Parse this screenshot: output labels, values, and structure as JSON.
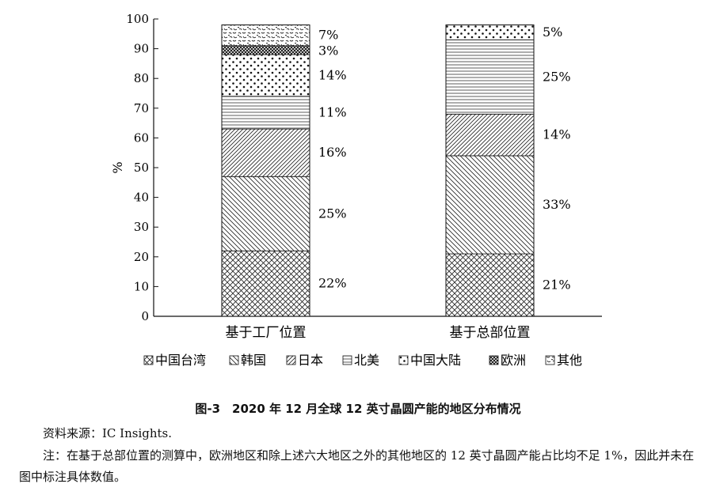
{
  "chart_data": {
    "type": "bar",
    "stacked": true,
    "ylabel": "%",
    "ylim": [
      0,
      100
    ],
    "yticks": [
      "0",
      "10",
      "20",
      "30",
      "40",
      "50",
      "60",
      "70",
      "80",
      "90",
      "100"
    ],
    "categories": [
      "基于工厂位置",
      "基于总部位置"
    ],
    "series": [
      {
        "name": "中国台湾",
        "pattern": "crosshatch",
        "values": [
          22,
          21
        ],
        "labels": [
          "22%",
          "21%"
        ]
      },
      {
        "name": "韩国",
        "pattern": "backslash",
        "values": [
          25,
          33
        ],
        "labels": [
          "25%",
          "33%"
        ]
      },
      {
        "name": "日本",
        "pattern": "slash",
        "values": [
          16,
          14
        ],
        "labels": [
          "16%",
          "14%"
        ]
      },
      {
        "name": "北美",
        "pattern": "horizontal",
        "values": [
          11,
          25
        ],
        "labels": [
          "11%",
          "25%"
        ]
      },
      {
        "name": "中国大陆",
        "pattern": "dots",
        "values": [
          14,
          5
        ],
        "labels": [
          "14%",
          "5%"
        ]
      },
      {
        "name": "欧洲",
        "pattern": "dense-grid",
        "values": [
          3,
          0
        ],
        "labels": [
          "3%",
          ""
        ]
      },
      {
        "name": "其他",
        "pattern": "speckle",
        "values": [
          7,
          0
        ],
        "labels": [
          "7%",
          ""
        ]
      }
    ],
    "legend_position": "bottom"
  },
  "caption": "图-3　2020 年 12 月全球 12 英寸晶圆产能的地区分布情况",
  "source": "资料来源：IC Insights.",
  "note": "注：在基于总部位置的测算中，欧洲地区和除上述六大地区之外的其他地区的 12 英寸晶圆产能占比均不足 1%，因此并未在图中标注具体数值。"
}
